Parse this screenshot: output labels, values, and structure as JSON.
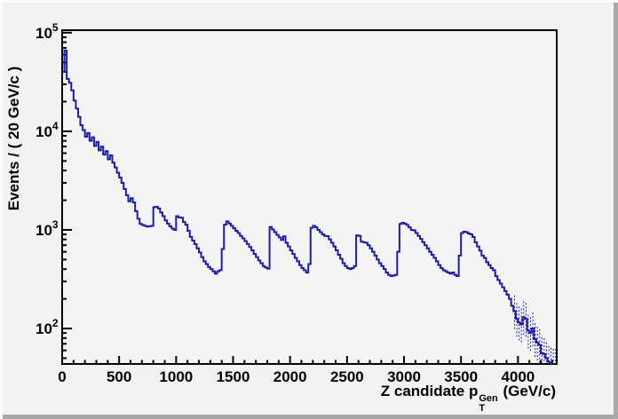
{
  "window": {
    "background": "#f2f2f2",
    "bevel_light": "#fcfcfc",
    "bevel_dark": "#a8a8a8"
  },
  "chart_data": {
    "type": "histogram-step",
    "title": "",
    "grid": false,
    "legend": "none",
    "line_color": "#1c1caa",
    "axis_color": "#000000",
    "y_axis": {
      "label": "Events / ( 20 GeV/c )",
      "scale": "log",
      "min": 43.7,
      "max": 106000,
      "major_ticks": [
        {
          "base": "10",
          "exp": "2",
          "value": 100
        },
        {
          "base": "10",
          "exp": "3",
          "value": 1000
        },
        {
          "base": "10",
          "exp": "4",
          "value": 10000
        },
        {
          "base": "10",
          "exp": "5",
          "value": 100000
        }
      ]
    },
    "x_axis": {
      "label_prefix": "Z candidate p",
      "label_sup": "Gen",
      "label_sub": "T",
      "label_suffix": " (GeV/c)",
      "min": 0,
      "max": 4340,
      "major_ticks": [
        {
          "label": "0",
          "value": 0
        },
        {
          "label": "500",
          "value": 500
        },
        {
          "label": "1000",
          "value": 1000
        },
        {
          "label": "1500",
          "value": 1500
        },
        {
          "label": "2000",
          "value": 2000
        },
        {
          "label": "2500",
          "value": 2500
        },
        {
          "label": "3000",
          "value": 3000
        },
        {
          "label": "3500",
          "value": 3500
        },
        {
          "label": "4000",
          "value": 4000
        }
      ],
      "minor_tick_step": 100
    },
    "bin_width": 20,
    "x_start": 0,
    "values": [
      40000,
      66000,
      34000,
      31000,
      26000,
      20500,
      17000,
      14000,
      11500,
      10300,
      8800,
      9600,
      8000,
      8700,
      7100,
      7800,
      6400,
      7000,
      5800,
      6300,
      5200,
      5700,
      4800,
      4300,
      3800,
      3400,
      3000,
      2600,
      2250,
      1950,
      2100,
      1900,
      1550,
      1300,
      1150,
      1120,
      1100,
      1080,
      1090,
      1100,
      1700,
      1720,
      1650,
      1500,
      1380,
      1250,
      1160,
      1090,
      1030,
      1000,
      1380,
      1340,
      1330,
      1200,
      1130,
      980,
      850,
      780,
      720,
      650,
      590,
      530,
      480,
      450,
      420,
      400,
      380,
      360,
      380,
      390,
      640,
      1130,
      1220,
      1160,
      1100,
      1040,
      980,
      930,
      870,
      820,
      770,
      720,
      670,
      620,
      570,
      530,
      490,
      460,
      430,
      415,
      405,
      1070,
      1010,
      950,
      890,
      840,
      790,
      860,
      740,
      680,
      620,
      570,
      520,
      480,
      440,
      410,
      390,
      370,
      450,
      1050,
      1100,
      1060,
      1000,
      950,
      900,
      870,
      865,
      800,
      740,
      680,
      620,
      560,
      510,
      460,
      430,
      410,
      400,
      410,
      430,
      880,
      870,
      760,
      750,
      740,
      700,
      650,
      600,
      550,
      500,
      460,
      430,
      400,
      370,
      350,
      340,
      345,
      350,
      600,
      1150,
      1180,
      1160,
      1120,
      1060,
      1000,
      990,
      930,
      870,
      810,
      750,
      700,
      650,
      600,
      560,
      520,
      480,
      440,
      410,
      390,
      380,
      370,
      360,
      370,
      350,
      340,
      550,
      930,
      960,
      950,
      920,
      900,
      850,
      750,
      680,
      615,
      550,
      520,
      470,
      440,
      410,
      390,
      340,
      310,
      285,
      262,
      240,
      220,
      200,
      170,
      150,
      125,
      115,
      110,
      130,
      125,
      95,
      90,
      100,
      78,
      72,
      68,
      56,
      55,
      50,
      46,
      44,
      43,
      43
    ]
  }
}
